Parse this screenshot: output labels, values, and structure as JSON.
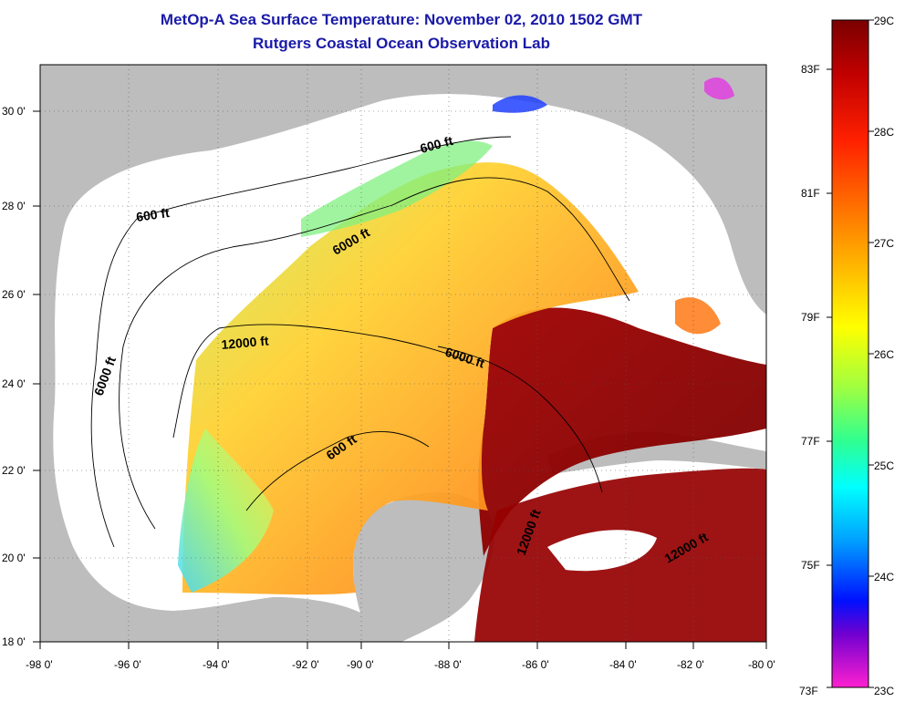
{
  "header": {
    "title": "MetOp-A Sea Surface Temperature:  November 02, 2010 1502 GMT",
    "subtitle": "Rutgers Coastal Ocean Observation Lab"
  },
  "map": {
    "lon_labels": [
      "-98 0'",
      "-96 0'",
      "-94 0'",
      "-92 0'",
      "-90 0'",
      "-88 0'",
      "-86 0'",
      "-84 0'",
      "-82 0'",
      "-80 0'"
    ],
    "lat_labels": [
      "30 0'",
      "28 0'",
      "26 0'",
      "24 0'",
      "22 0'",
      "20 0'",
      "18 0'"
    ],
    "contour_labels": [
      "600 ft",
      "600 ft",
      "6000 ft",
      "6000 ft",
      "12000 ft",
      "6000 ft",
      "600 ft",
      "12000 ft",
      "12000 ft"
    ],
    "colors": {
      "land": "#bdbdbd",
      "no_data": "#ffffff",
      "warm": "#8b0000",
      "cool": "#30c0ff"
    }
  },
  "colorbar": {
    "celsius_labels": [
      "29C",
      "28C",
      "27C",
      "26C",
      "25C",
      "24C",
      "23C"
    ],
    "fahrenheit_labels": [
      "83F",
      "81F",
      "79F",
      "77F",
      "75F",
      "73F"
    ],
    "range_celsius": [
      23,
      29
    ]
  }
}
